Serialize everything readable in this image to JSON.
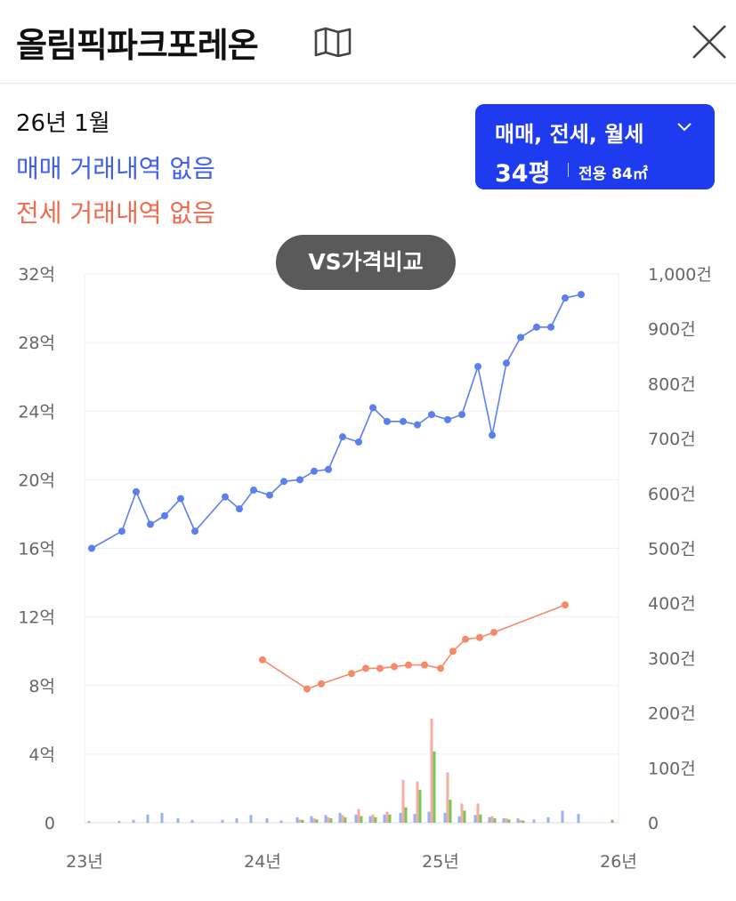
{
  "header": {
    "title": "올림픽파크포레온",
    "map_icon": "map-icon",
    "close_icon": "close-icon"
  },
  "info": {
    "date": "26년 1월",
    "sale_status": "매매 거래내역 없음",
    "jeonse_status": "전세 거래내역 없음"
  },
  "filter": {
    "types": "매매, 전세, 월세",
    "size": "34평",
    "area": "전용 84㎡"
  },
  "vs_button": {
    "label": "VS가격비교"
  },
  "colors": {
    "sale": "#5b7ff0",
    "jeonse": "#f58a6a",
    "bar_sale": "#8fa8f5",
    "bar_jeonse": "#f5a597",
    "bar_monthly": "#6ac04a",
    "accent": "#1f3bf0"
  },
  "chart_data": {
    "type": "line",
    "x_ticks": [
      "23년",
      "24년",
      "25년",
      "26년"
    ],
    "y_left_ticks": [
      "0",
      "4억",
      "8억",
      "12억",
      "16억",
      "20억",
      "24억",
      "28억",
      "32억"
    ],
    "y_right_ticks": [
      "0",
      "100건",
      "200건",
      "300건",
      "400건",
      "500건",
      "600건",
      "700건",
      "800건",
      "900건",
      "1,000건"
    ],
    "y_left_range": [
      0,
      32
    ],
    "y_right_range": [
      0,
      1000
    ],
    "x_range": [
      2023.0,
      2026.0
    ],
    "series": [
      {
        "key": "sale",
        "x": [
          2023.04,
          2023.21,
          2023.29,
          2023.37,
          2023.45,
          2023.54,
          2023.62,
          2023.79,
          2023.87,
          2023.95,
          2024.04,
          2024.12,
          2024.21,
          2024.29,
          2024.37,
          2024.45,
          2024.54,
          2024.62,
          2024.7,
          2024.79,
          2024.87,
          2024.95,
          2025.04,
          2025.12,
          2025.21,
          2025.29,
          2025.37,
          2025.45,
          2025.54,
          2025.62,
          2025.7,
          2025.79
        ],
        "values": [
          16.0,
          17.0,
          19.3,
          17.4,
          17.9,
          18.9,
          17.0,
          19.0,
          18.3,
          19.4,
          19.1,
          19.9,
          20.0,
          20.5,
          20.6,
          22.5,
          22.2,
          24.2,
          23.4,
          23.4,
          23.2,
          23.8,
          23.5,
          23.8,
          26.6,
          22.6,
          26.8,
          28.3,
          28.9,
          28.9,
          30.6,
          30.8
        ]
      },
      {
        "key": "jeonse",
        "x": [
          2024.0,
          2024.25,
          2024.33,
          2024.5,
          2024.58,
          2024.66,
          2024.74,
          2024.82,
          2024.91,
          2025.0,
          2025.07,
          2025.14,
          2025.22,
          2025.3,
          2025.7
        ],
        "values": [
          9.5,
          7.8,
          8.1,
          8.7,
          9.0,
          9.0,
          9.1,
          9.2,
          9.2,
          9.0,
          10.0,
          10.7,
          10.8,
          11.1,
          12.7
        ]
      }
    ],
    "volume_series": [
      {
        "key": "sale",
        "x": [
          2023.04,
          2023.21,
          2023.29,
          2023.37,
          2023.45,
          2023.54,
          2023.62,
          2023.79,
          2023.87,
          2023.95,
          2024.04,
          2024.12,
          2024.21,
          2024.29,
          2024.37,
          2024.45,
          2024.54,
          2024.62,
          2024.7,
          2024.79,
          2024.87,
          2024.95,
          2025.04,
          2025.12,
          2025.21,
          2025.29,
          2025.37,
          2025.45,
          2025.54,
          2025.62,
          2025.7,
          2025.79
        ],
        "values": [
          3,
          3,
          5,
          15,
          18,
          8,
          5,
          5,
          8,
          14,
          8,
          4,
          10,
          12,
          14,
          18,
          15,
          12,
          15,
          18,
          16,
          20,
          18,
          12,
          14,
          10,
          8,
          8,
          6,
          10,
          22,
          16
        ]
      },
      {
        "key": "jeonse",
        "x": [
          2024.21,
          2024.29,
          2024.37,
          2024.45,
          2024.54,
          2024.62,
          2024.7,
          2024.79,
          2024.87,
          2024.95,
          2025.04,
          2025.12,
          2025.21,
          2025.29,
          2025.37,
          2025.45
        ],
        "values": [
          6,
          8,
          10,
          14,
          25,
          15,
          20,
          78,
          75,
          190,
          92,
          35,
          35,
          12,
          8,
          5
        ]
      },
      {
        "key": "monthly",
        "x": [
          2024.21,
          2024.29,
          2024.37,
          2024.45,
          2024.54,
          2024.62,
          2024.7,
          2024.79,
          2024.87,
          2024.95,
          2025.04,
          2025.12,
          2025.21,
          2025.29,
          2025.37,
          2025.45,
          2025.95
        ],
        "values": [
          5,
          6,
          8,
          10,
          12,
          10,
          15,
          28,
          60,
          130,
          42,
          22,
          15,
          8,
          6,
          4,
          5
        ]
      }
    ]
  }
}
